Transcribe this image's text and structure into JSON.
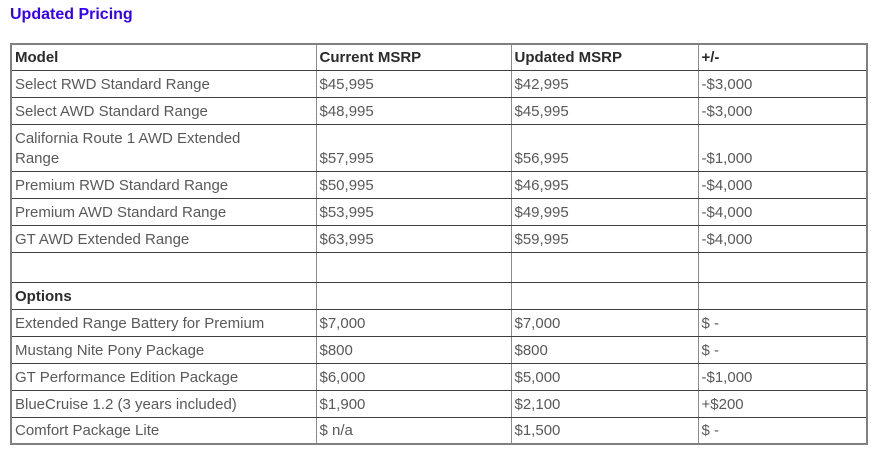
{
  "page": {
    "title": "Updated Pricing"
  },
  "colors": {
    "title_accent": "#3300ff",
    "header_text": "#2b2b2b",
    "body_text": "#595959",
    "border_horizontal": "#3f3f3f",
    "border_vertical": "#8c8c8c",
    "outer_border": "#808080"
  },
  "table": {
    "columns": [
      "Model",
      "Current MSRP",
      "Updated MSRP",
      "+/-"
    ],
    "vehicle_rows": [
      {
        "model": "Select RWD Standard Range",
        "current_msrp": "$45,995",
        "updated_msrp": "$42,995",
        "change": "-$3,000"
      },
      {
        "model": "Select AWD Standard Range",
        "current_msrp": "$48,995",
        "updated_msrp": "$45,995",
        "change": "-$3,000"
      },
      {
        "model": "California Route 1 AWD Extended\nRange",
        "current_msrp": "$57,995",
        "updated_msrp": "$56,995",
        "change": "-$1,000"
      },
      {
        "model": "Premium RWD Standard Range",
        "current_msrp": "$50,995",
        "updated_msrp": "$46,995",
        "change": "-$4,000"
      },
      {
        "model": "Premium AWD Standard Range",
        "current_msrp": "$53,995",
        "updated_msrp": "$49,995",
        "change": "-$4,000"
      },
      {
        "model": "GT AWD Extended Range",
        "current_msrp": "$63,995",
        "updated_msrp": "$59,995",
        "change": "-$4,000"
      }
    ],
    "section_label": "Options",
    "option_rows": [
      {
        "model": "Extended Range Battery for Premium",
        "current_msrp": "$7,000",
        "updated_msrp": "$7,000",
        "change": "$ -"
      },
      {
        "model": "Mustang Nite Pony Package",
        "current_msrp": "$800",
        "updated_msrp": "$800",
        "change": "$ -"
      },
      {
        "model": "GT Performance Edition Package",
        "current_msrp": "$6,000",
        "updated_msrp": "$5,000",
        "change": "-$1,000"
      },
      {
        "model": "BlueCruise 1.2 (3 years included)",
        "current_msrp": "$1,900",
        "updated_msrp": "$2,100",
        "change": "+$200"
      },
      {
        "model": "Comfort Package Lite",
        "current_msrp": "$ n/a",
        "updated_msrp": "$1,500",
        "change": "$ -"
      }
    ]
  }
}
